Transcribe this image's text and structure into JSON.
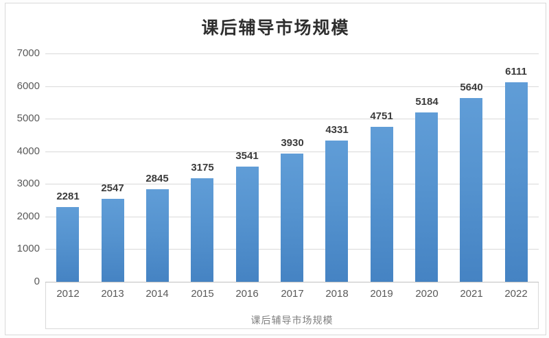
{
  "chart_data": {
    "type": "bar",
    "title": "课后辅导市场规模",
    "categories": [
      "2012",
      "2013",
      "2014",
      "2015",
      "2016",
      "2017",
      "2018",
      "2019",
      "2020",
      "2021",
      "2022"
    ],
    "values": [
      2281,
      2547,
      2845,
      3175,
      3541,
      3930,
      4331,
      4751,
      5184,
      5640,
      6111
    ],
    "xlabel": "课后辅导市场规模",
    "ylabel": "",
    "ylim": [
      0,
      7000
    ],
    "ytick_step": 1000,
    "yticks": [
      0,
      1000,
      2000,
      3000,
      4000,
      5000,
      6000,
      7000
    ],
    "grid": true,
    "legend_position": "none",
    "data_labels": true,
    "colors": {
      "bar_top": "#609dd7",
      "bar_bottom": "#4583c3",
      "gridline": "#d9d9d9",
      "axis_line": "#bfbfbf",
      "tick_text": "#595959",
      "data_label_text": "#3b3b3b",
      "title_text": "#2e2e2e",
      "axis_title_text": "#7f7f7f",
      "frame_border": "#d9d9d9",
      "background": "#ffffff"
    }
  }
}
